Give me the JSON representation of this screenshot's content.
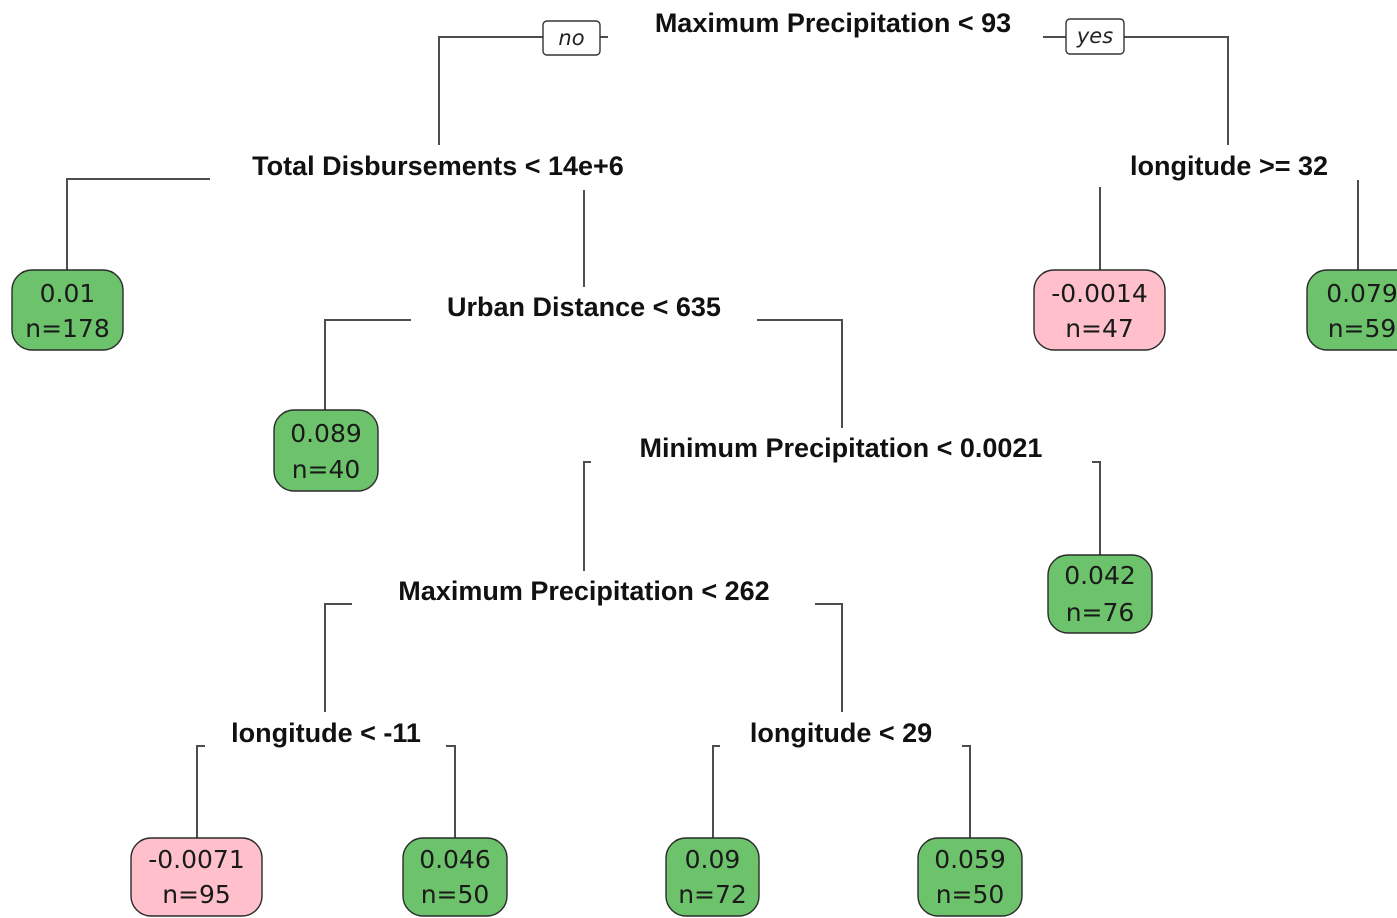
{
  "colors": {
    "positive": "#6cc36c",
    "negative": "#ffc0cb",
    "edge": "#4d4d4d"
  },
  "branch_labels": {
    "no": "no",
    "yes": "yes"
  },
  "splits": {
    "root": "Maximum Precipitation < 93",
    "total_disbursements": "Total Disbursements < 14e+6",
    "longitude_ge_32": "longitude >= 32",
    "urban_distance": "Urban Distance < 635",
    "min_precip": "Minimum Precipitation < 0.0021",
    "max_precip_262": "Maximum Precipitation < 262",
    "longitude_lt_neg11": "longitude < -11",
    "longitude_lt_29": "longitude < 29"
  },
  "leaves": [
    {
      "id": "leaf1",
      "value": "0.01",
      "n": "n=178",
      "sign": "positive"
    },
    {
      "id": "leaf2",
      "value": "-0.0014",
      "n": "n=47",
      "sign": "negative"
    },
    {
      "id": "leaf3",
      "value": "0.079",
      "n": "n=59",
      "sign": "positive"
    },
    {
      "id": "leaf4",
      "value": "0.089",
      "n": "n=40",
      "sign": "positive"
    },
    {
      "id": "leaf5",
      "value": "0.042",
      "n": "n=76",
      "sign": "positive"
    },
    {
      "id": "leaf6",
      "value": "-0.0071",
      "n": "n=95",
      "sign": "negative"
    },
    {
      "id": "leaf7",
      "value": "0.046",
      "n": "n=50",
      "sign": "positive"
    },
    {
      "id": "leaf8",
      "value": "0.09",
      "n": "n=72",
      "sign": "positive"
    },
    {
      "id": "leaf9",
      "value": "0.059",
      "n": "n=50",
      "sign": "positive"
    }
  ]
}
